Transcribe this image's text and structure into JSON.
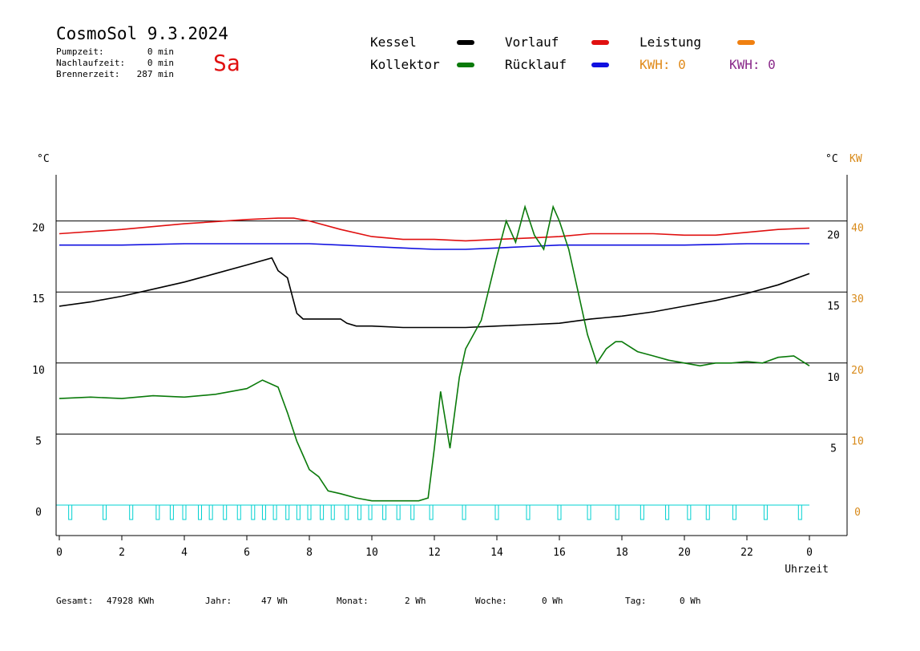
{
  "header": {
    "title": "CosmoSol 9.3.2024",
    "day": "Sa",
    "stats": [
      {
        "label": "Pumpzeit:",
        "value": "0 min"
      },
      {
        "label": "Nachlaufzeit:",
        "value": "0 min"
      },
      {
        "label": "Brennerzeit:",
        "value": "287 min"
      }
    ]
  },
  "legend": {
    "kessel": {
      "label": "Kessel",
      "color": "#000000"
    },
    "kollektor": {
      "label": "Kollektor",
      "color": "#0a7a0a"
    },
    "vorlauf": {
      "label": "Vorlauf",
      "color": "#e01010"
    },
    "ruecklauf": {
      "label": "Rücklauf",
      "color": "#1010e0"
    },
    "leistung": {
      "label": "Leistung",
      "color": "#f08010"
    },
    "kwh1": {
      "label": "KWH: 0",
      "color": "#e08a1a"
    },
    "kwh2": {
      "label": "KWH: 0",
      "color": "#8a2a8a"
    }
  },
  "footer": {
    "gesamt_label": "Gesamt:",
    "gesamt_value": "47928 KWh",
    "jahr_label": "Jahr:",
    "jahr_value": "47 Wh",
    "monat_label": "Monat:",
    "monat_value": "2 Wh",
    "woche_label": "Woche:",
    "woche_value": "0 Wh",
    "tag_label": "Tag:",
    "tag_value": "0 Wh"
  },
  "chart_data": {
    "type": "line",
    "xlabel": "Uhrzeit",
    "ylabel_left": "°C",
    "ylabel_right": "°C",
    "ylabel_right2": "KW",
    "xlim": [
      0,
      24
    ],
    "ylim": [
      0,
      20
    ],
    "y2lim": [
      0,
      40
    ],
    "x_ticks": [
      "0",
      "2",
      "4",
      "6",
      "8",
      "10",
      "12",
      "14",
      "16",
      "18",
      "20",
      "22",
      "0"
    ],
    "y_left_ticks": [
      "0",
      "5",
      "10",
      "15",
      "20"
    ],
    "y_right_ticks": [
      "5",
      "10",
      "15",
      "20"
    ],
    "y2_ticks": [
      "0",
      "10",
      "20",
      "30",
      "40"
    ],
    "grid": true,
    "series": [
      {
        "name": "Kessel",
        "color": "#000000",
        "x": [
          0,
          1,
          2,
          3,
          4,
          5,
          6,
          6.8,
          7.0,
          7.3,
          7.6,
          7.8,
          8.0,
          8.5,
          9.0,
          9.2,
          9.5,
          10,
          11,
          12,
          13,
          14,
          15,
          16,
          17,
          18,
          19,
          20,
          21,
          22,
          23,
          24
        ],
        "y": [
          14.0,
          14.3,
          14.7,
          15.2,
          15.7,
          16.3,
          16.9,
          17.4,
          16.5,
          16.0,
          13.5,
          13.1,
          13.1,
          13.1,
          13.1,
          12.8,
          12.6,
          12.6,
          12.5,
          12.5,
          12.5,
          12.6,
          12.7,
          12.8,
          13.1,
          13.3,
          13.6,
          14.0,
          14.4,
          14.9,
          15.5,
          16.3
        ]
      },
      {
        "name": "Vorlauf",
        "color": "#e01010",
        "x": [
          0,
          2,
          4,
          6,
          7,
          7.5,
          8,
          9,
          10,
          11,
          12,
          13,
          14,
          15,
          16,
          17,
          18,
          19,
          20,
          21,
          22,
          23,
          24
        ],
        "y": [
          19.1,
          19.4,
          19.8,
          20.1,
          20.2,
          20.2,
          20.0,
          19.4,
          18.9,
          18.7,
          18.7,
          18.6,
          18.7,
          18.8,
          18.9,
          19.1,
          19.1,
          19.1,
          19.0,
          19.0,
          19.2,
          19.4,
          19.5
        ]
      },
      {
        "name": "Rücklauf",
        "color": "#1010e0",
        "x": [
          0,
          2,
          4,
          6,
          7,
          8,
          9,
          10,
          11,
          12,
          13,
          14,
          15,
          16,
          17,
          18,
          20,
          22,
          24
        ],
        "y": [
          18.3,
          18.3,
          18.4,
          18.4,
          18.4,
          18.4,
          18.3,
          18.2,
          18.1,
          18.0,
          18.0,
          18.1,
          18.2,
          18.3,
          18.3,
          18.3,
          18.3,
          18.4,
          18.4
        ]
      },
      {
        "name": "Kollektor",
        "color": "#0a7a0a",
        "x": [
          0,
          1,
          2,
          3,
          4,
          5,
          6,
          6.5,
          7,
          7.3,
          7.6,
          7.8,
          8.0,
          8.3,
          8.6,
          9,
          9.5,
          10,
          11,
          11.5,
          11.8,
          12.0,
          12.2,
          12.5,
          12.8,
          13.0,
          13.5,
          14.0,
          14.3,
          14.6,
          14.9,
          15.2,
          15.5,
          15.8,
          16.0,
          16.3,
          16.6,
          16.9,
          17.2,
          17.5,
          17.8,
          18.0,
          18.5,
          19,
          19.5,
          20,
          20.5,
          21,
          21.5,
          22,
          22.5,
          23,
          23.5,
          24
        ],
        "y": [
          7.5,
          7.6,
          7.5,
          7.7,
          7.6,
          7.8,
          8.2,
          8.8,
          8.3,
          6.5,
          4.5,
          3.5,
          2.5,
          2.0,
          1.0,
          0.8,
          0.5,
          0.3,
          0.3,
          0.3,
          0.5,
          4.0,
          8.0,
          4.0,
          9.0,
          11.0,
          13.0,
          17.5,
          20.0,
          18.5,
          21.0,
          19.0,
          18.0,
          21.0,
          20.0,
          18.0,
          15.0,
          12.0,
          10.0,
          11.0,
          11.5,
          11.5,
          10.8,
          10.5,
          10.2,
          10.0,
          9.8,
          10.0,
          10.0,
          10.1,
          10.0,
          10.4,
          10.5,
          9.8
        ]
      }
    ],
    "pump_markers_x": [
      0.35,
      1.45,
      2.3,
      3.15,
      3.6,
      4.0,
      4.5,
      4.85,
      5.3,
      5.75,
      6.2,
      6.55,
      6.9,
      7.3,
      7.65,
      8.0,
      8.4,
      8.75,
      9.2,
      9.6,
      9.95,
      10.4,
      10.85,
      11.3,
      11.9,
      12.95,
      14.0,
      15.0,
      16.0,
      16.95,
      17.85,
      18.65,
      19.45,
      20.15,
      20.75,
      21.6,
      22.6,
      23.7
    ]
  }
}
